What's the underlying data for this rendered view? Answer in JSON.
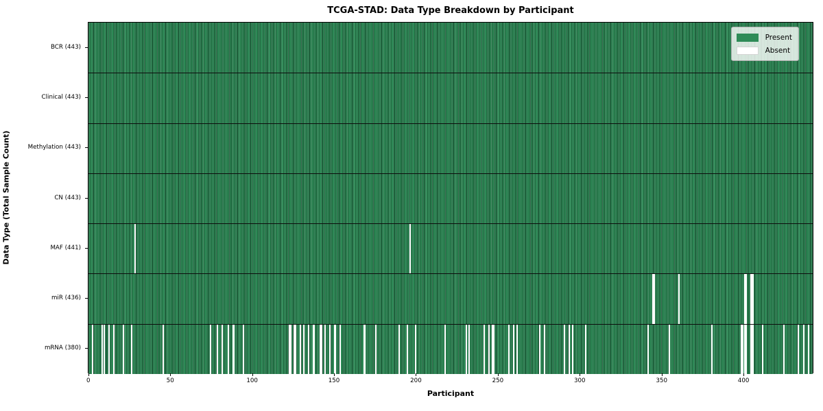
{
  "chart_data": {
    "type": "heatmap",
    "title": "TCGA-STAD: Data Type Breakdown by Participant",
    "xlabel": "Participant",
    "ylabel": "Data Type (Total Sample Count)",
    "x_ticks": [
      0,
      50,
      100,
      150,
      200,
      250,
      300,
      350,
      400
    ],
    "x_range": [
      0,
      443
    ],
    "n_participants": 443,
    "grid": false,
    "legend_position": "upper right",
    "legend": [
      {
        "label": "Present",
        "color": "#2e8b57"
      },
      {
        "label": "Absent",
        "color": "#ffffff"
      }
    ],
    "colors": {
      "present": "#2e8b57",
      "absent": "#ffffff",
      "bar_edge": "#0c3d24",
      "axis": "#000000",
      "legend_bg": "rgba(255,255,255,0.8)"
    },
    "rows": [
      {
        "label": "BCR (443)",
        "total": 443,
        "absent": []
      },
      {
        "label": "Clinical (443)",
        "total": 443,
        "absent": []
      },
      {
        "label": "Methylation (443)",
        "total": 443,
        "absent": []
      },
      {
        "label": "CN (443)",
        "total": 443,
        "absent": []
      },
      {
        "label": "MAF (441)",
        "total": 441,
        "absent": [
          28,
          196
        ]
      },
      {
        "label": "miR (436)",
        "total": 436,
        "absent": [
          344,
          345,
          360,
          400,
          401,
          404,
          405
        ]
      },
      {
        "label": "mRNA (380)",
        "total": 380,
        "absent": [
          2,
          8,
          9,
          12,
          15,
          21,
          26,
          45,
          74,
          78,
          81,
          85,
          88,
          94,
          122,
          123,
          125,
          126,
          129,
          131,
          134,
          137,
          141,
          142,
          144,
          147,
          150,
          153,
          168,
          175,
          189,
          194,
          199,
          217,
          230,
          232,
          241,
          244,
          246,
          247,
          256,
          259,
          261,
          275,
          278,
          290,
          293,
          295,
          303,
          341,
          354,
          380,
          398,
          399,
          400,
          401,
          404,
          405,
          411,
          424,
          433,
          436,
          439
        ]
      }
    ]
  }
}
